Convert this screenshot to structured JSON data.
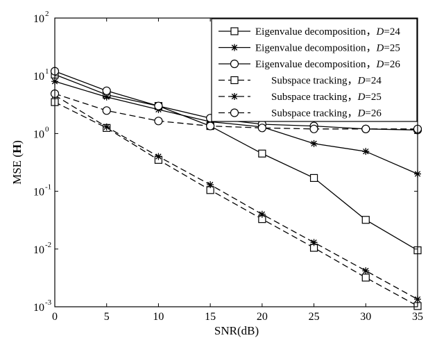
{
  "chart_data": {
    "type": "line",
    "xlabel": "SNR(dB)",
    "ylabel_prefix": "MSE (",
    "ylabel_bold": "H",
    "ylabel_suffix": ")",
    "xlim": [
      0,
      35
    ],
    "ylim": [
      0.001,
      100
    ],
    "yscale": "log",
    "grid": false,
    "legend_position": "top-right",
    "xticks": [
      "0",
      "5",
      "10",
      "15",
      "20",
      "25",
      "30",
      "35"
    ],
    "yticks": [
      {
        "base": "10",
        "exp": "-3"
      },
      {
        "base": "10",
        "exp": "-2"
      },
      {
        "base": "10",
        "exp": "-1"
      },
      {
        "base": "10",
        "exp": "0"
      },
      {
        "base": "10",
        "exp": "1"
      },
      {
        "base": "10",
        "exp": "2"
      }
    ],
    "x": [
      0,
      5,
      10,
      15,
      20,
      25,
      30,
      35
    ],
    "series": [
      {
        "name": "Eigenvalue decomposition，D=24",
        "name_prefix": "Eigenvalue decomposition，",
        "name_var": "D",
        "name_suffix": "=24",
        "marker": "square",
        "dash": "solid",
        "values": [
          10.5,
          4.7,
          3.0,
          1.35,
          0.45,
          0.17,
          0.032,
          0.0095
        ]
      },
      {
        "name": "Eigenvalue decomposition，D=25",
        "name_prefix": "Eigenvalue decomposition，",
        "name_var": "D",
        "name_suffix": "=25",
        "marker": "star",
        "dash": "solid",
        "values": [
          8.0,
          4.3,
          2.6,
          1.6,
          1.3,
          0.67,
          0.49,
          0.2
        ]
      },
      {
        "name": "Eigenvalue decomposition，D=26",
        "name_prefix": "Eigenvalue decomposition，",
        "name_var": "D",
        "name_suffix": "=26",
        "marker": "circle",
        "dash": "solid",
        "values": [
          12.0,
          5.5,
          3.0,
          1.85,
          1.45,
          1.35,
          1.2,
          1.15
        ]
      },
      {
        "name": "Subspace tracking，D=24",
        "name_prefix": "Subspace tracking，",
        "name_var": "D",
        "name_suffix": "=24",
        "marker": "square",
        "dash": "dashed",
        "values": [
          3.5,
          1.25,
          0.35,
          0.105,
          0.033,
          0.0105,
          0.0032,
          0.00103
        ]
      },
      {
        "name": "Subspace tracking，D=25",
        "name_prefix": "Subspace tracking，",
        "name_var": "D",
        "name_suffix": "=25",
        "marker": "star",
        "dash": "dashed",
        "values": [
          4.6,
          1.3,
          0.4,
          0.13,
          0.04,
          0.013,
          0.0042,
          0.00135
        ]
      },
      {
        "name": "Subspace tracking，D=26",
        "name_prefix": "Subspace tracking，",
        "name_var": "D",
        "name_suffix": "=26",
        "marker": "circle",
        "dash": "dashed",
        "values": [
          4.9,
          2.5,
          1.65,
          1.35,
          1.25,
          1.2,
          1.2,
          1.2
        ]
      }
    ]
  }
}
